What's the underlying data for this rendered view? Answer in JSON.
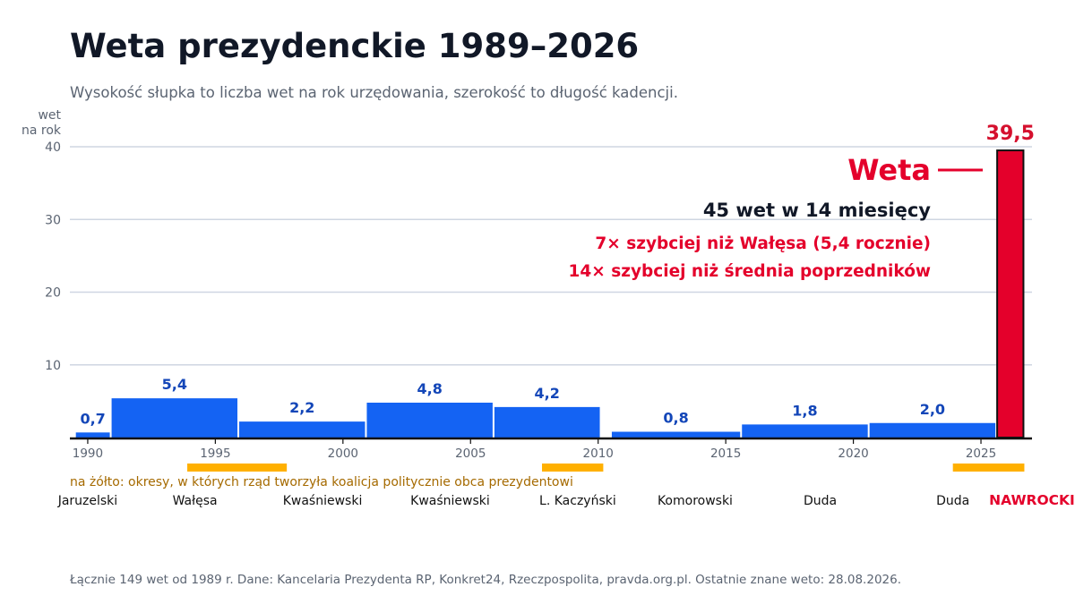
{
  "title": "Weta prezydenckie 1989–2026",
  "subtitle": "Wysokość słupka to liczba wet na rok urzędowania, szerokość to długość kadencji.",
  "footer": "Łącznie 149 wet od 1989 r. Dane: Kancelaria Prezydenta RP, Konkret24, Rzeczpospolita, pravda.org.pl. Ostatnie znane weto: 28.08.2026.",
  "colors": {
    "bar": "#1463f3",
    "bar_label": "#1346b8",
    "highlight": "#e4002b",
    "highlight_label": "#d5102e",
    "cohabitation": "#ffb000",
    "cohabitation_text": "#a56a00",
    "grid": "#cfd6e2",
    "axis": "#111111",
    "tick": "#5b6472"
  },
  "chart_data": {
    "type": "bar",
    "ylabel": "wet\nna rok",
    "ylim": [
      0,
      40
    ],
    "yticks": [
      10,
      20,
      30,
      40
    ],
    "xlim": [
      1989.3,
      2027.0
    ],
    "xticks": [
      1990,
      1995,
      2000,
      2005,
      2010,
      2015,
      2020,
      2025
    ],
    "grid": true,
    "bars": [
      {
        "president": "Jaruzelski",
        "start": 1989.5,
        "end": 1990.9,
        "value": 0.7,
        "label": "0,7"
      },
      {
        "president": "Wałęsa",
        "start": 1990.9,
        "end": 1995.9,
        "value": 5.4,
        "label": "5,4"
      },
      {
        "president": "Kwaśniewski",
        "start": 1995.9,
        "end": 2000.9,
        "value": 2.2,
        "label": "2,2"
      },
      {
        "president": "Kwaśniewski",
        "start": 2000.9,
        "end": 2005.9,
        "value": 4.8,
        "label": "4,8"
      },
      {
        "president": "L. Kaczyński",
        "start": 2005.9,
        "end": 2010.1,
        "value": 4.2,
        "label": "4,2"
      },
      {
        "president": "Komorowski",
        "start": 2010.5,
        "end": 2015.6,
        "value": 0.8,
        "label": "0,8"
      },
      {
        "president": "Duda",
        "start": 2015.6,
        "end": 2020.6,
        "value": 1.8,
        "label": "1,8"
      },
      {
        "president": "Duda",
        "start": 2020.6,
        "end": 2025.6,
        "value": 2.0,
        "label": "2,0"
      },
      {
        "president": "NAWROCKI",
        "start": 2025.6,
        "end": 2026.7,
        "value": 39.5,
        "label": "39,5",
        "highlight": true
      }
    ],
    "cohabitation_periods": [
      [
        1993.9,
        1997.8
      ],
      [
        2007.8,
        2010.2
      ],
      [
        2023.9,
        2026.7
      ]
    ],
    "cohabitation_note": "na żółto: okresy, w których rząd tworzyła koalicja politycznie obca prezydentowi",
    "president_labels": [
      {
        "name": "Jaruzelski",
        "year": 1990.0
      },
      {
        "name": "Wałęsa",
        "year": 1994.2
      },
      {
        "name": "Kwaśniewski",
        "year": 1999.2
      },
      {
        "name": "Kwaśniewski",
        "year": 2004.2
      },
      {
        "name": "L. Kaczyński",
        "year": 2009.2
      },
      {
        "name": "Komorowski",
        "year": 2013.8
      },
      {
        "name": "Duda",
        "year": 2018.7
      },
      {
        "name": "Duda",
        "year": 2023.9
      },
      {
        "name": "NAWROCKI",
        "year": 2027.0,
        "highlight": true
      }
    ],
    "annotation": {
      "label": "Weta",
      "line1": "45 wet w 14 miesięcy",
      "line2": "7× szybciej niż Wałęsa (5,4 rocznie)",
      "line3": "14× szybciej niż średnia poprzedników"
    }
  }
}
